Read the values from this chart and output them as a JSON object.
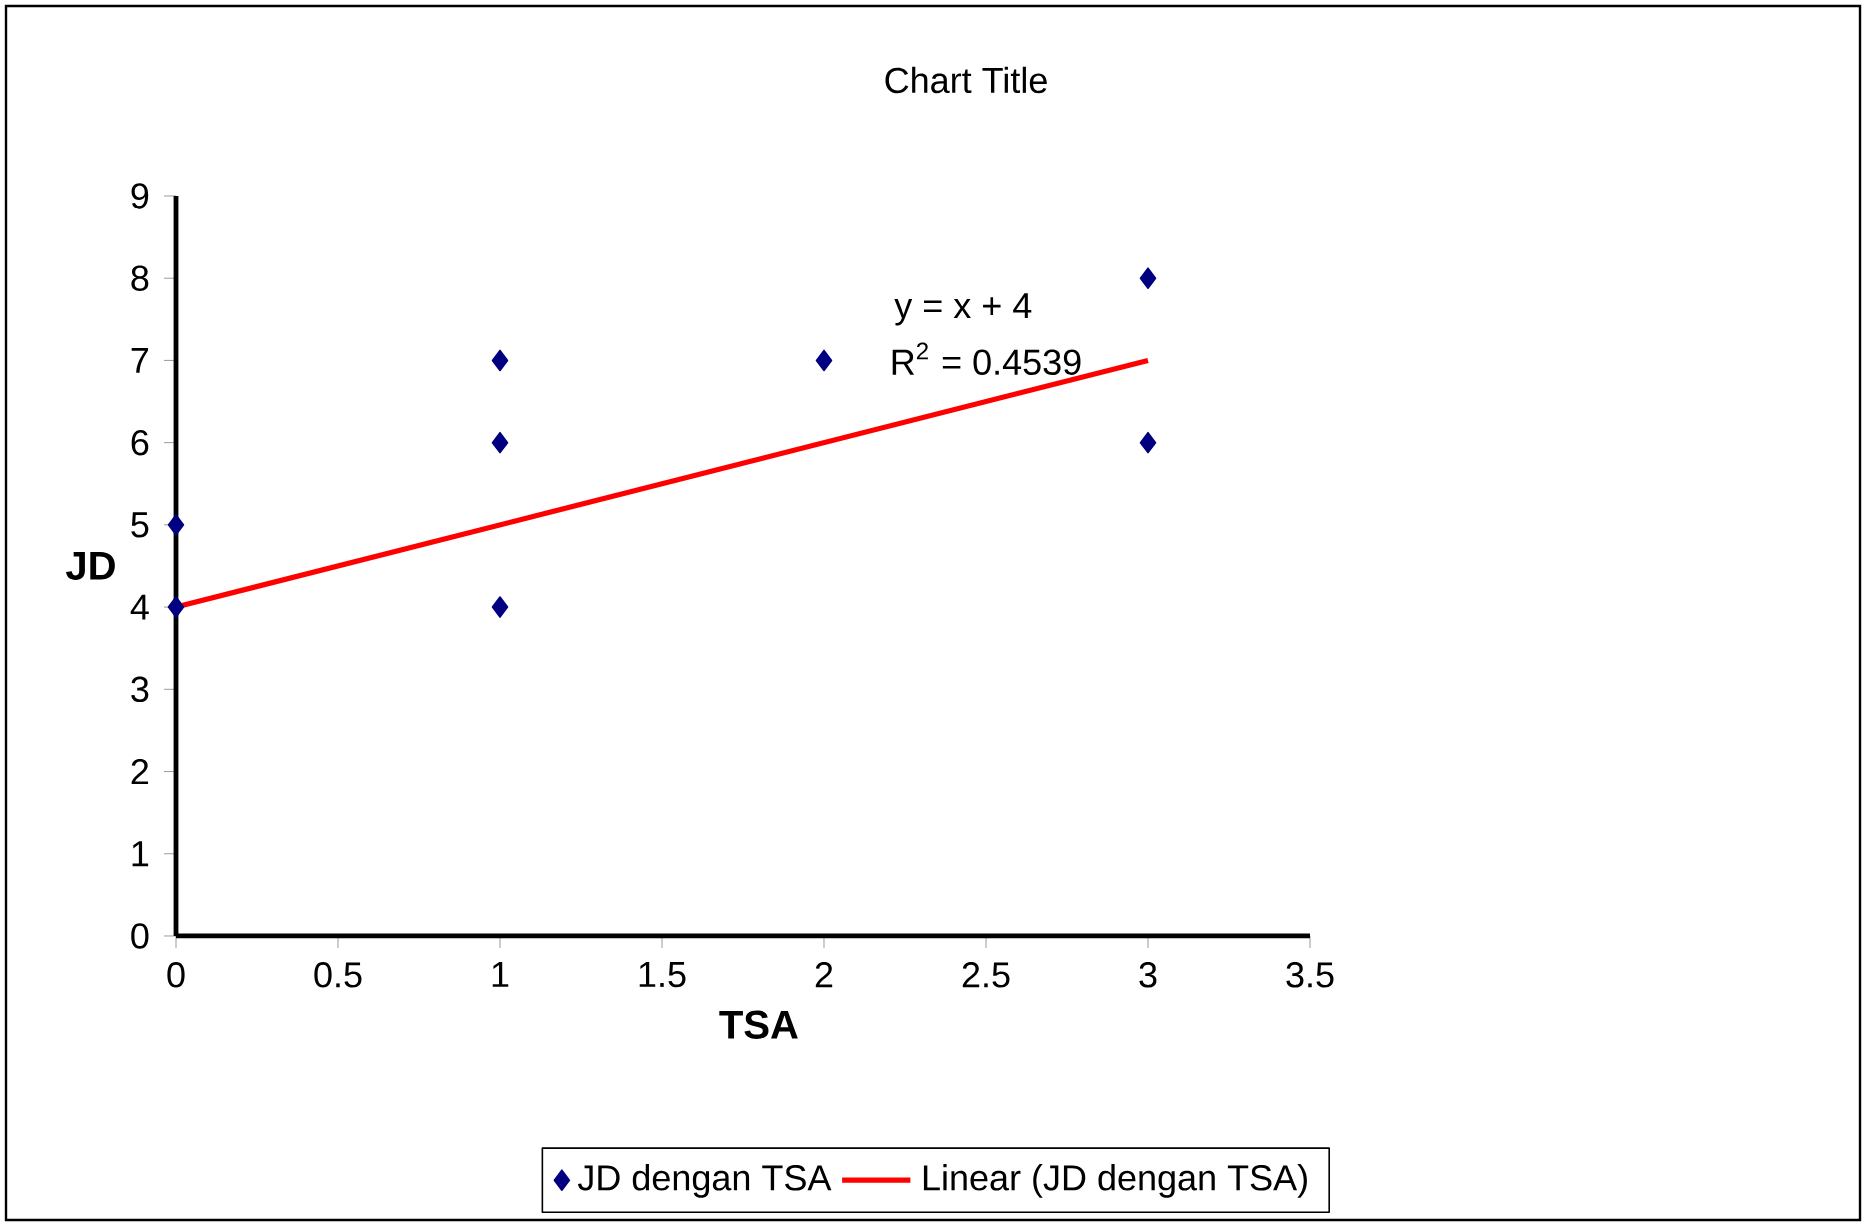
{
  "chart_data": {
    "type": "scatter",
    "title": "Chart Title",
    "xlabel": "TSA",
    "ylabel": "JD",
    "series": [
      {
        "name": "JD dengan TSA",
        "color": "#000080",
        "marker": "diamond",
        "x": [
          0,
          0,
          1,
          1,
          1,
          2,
          3,
          3
        ],
        "values": [
          4,
          5,
          4,
          6,
          7,
          7,
          8,
          6
        ]
      },
      {
        "name": "Linear (JD dengan TSA)",
        "type": "line",
        "color": "#ff0000",
        "marker": "none",
        "x": [
          0,
          3
        ],
        "values": [
          4,
          7
        ]
      }
    ],
    "annotations": [
      "y = x + 4",
      "R$^{2}$ = 0.4539"
    ],
    "xlim": [
      0,
      3.5
    ],
    "ylim": [
      0,
      9
    ],
    "xticks": [
      0,
      0.5,
      1,
      1.5,
      2,
      2.5,
      3,
      3.5
    ],
    "yticks": [
      0,
      1,
      2,
      3,
      4,
      5,
      6,
      7,
      8,
      9
    ],
    "grid": false,
    "legend": "bottom"
  }
}
